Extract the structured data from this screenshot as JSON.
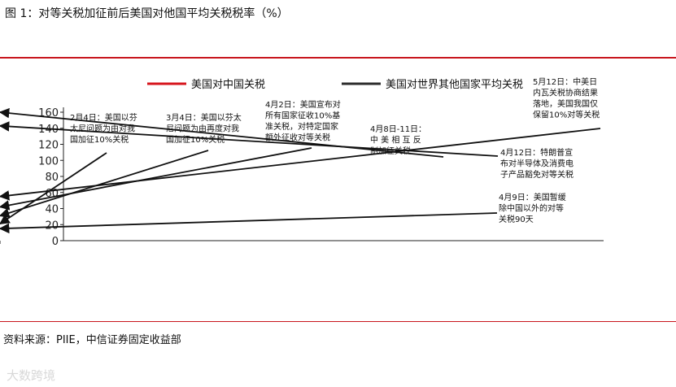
{
  "figure_title": "图 1：对等关税加征前后美国对他国平均关税税率（%）",
  "source": "资料来源：PIIE，中信证券固定收益部",
  "watermark": "大数跨境",
  "colors": {
    "china_series": "#d7151c",
    "world_series": "#2b2b2b",
    "rule": "#c8161d"
  },
  "chart_data": {
    "type": "line",
    "title": "",
    "xlabel": "",
    "ylabel": "",
    "ylim": [
      0,
      160
    ],
    "yticks": [
      0,
      20,
      40,
      60,
      80,
      100,
      120,
      140,
      160
    ],
    "xlim": [
      "2025/1/1",
      "2025/5/15"
    ],
    "xticks": [
      "2025/1/1",
      "2025/1/8",
      "2025/1/15",
      "2025/1/22",
      "2025/1/29",
      "2025/2/5",
      "2025/2/12",
      "2025/2/19",
      "2025/2/26",
      "2025/3/5",
      "2025/3/12",
      "2025/3/19",
      "2025/3/26",
      "2025/4/2",
      "2025/4/9",
      "2025/4/16",
      "2025/4/23",
      "2025/4/30",
      "2025/5/7"
    ],
    "grid": false,
    "legend_position": "top",
    "series": [
      {
        "name": "美国对中国关税",
        "points": [
          [
            "2025/1/1",
            21
          ],
          [
            "2025/2/4",
            21
          ],
          [
            "2025/2/5",
            31
          ],
          [
            "2025/3/3",
            31
          ],
          [
            "2025/3/4",
            41
          ],
          [
            "2025/3/10",
            41
          ],
          [
            "2025/3/11",
            42
          ],
          [
            "2025/4/2",
            42
          ],
          [
            "2025/4/3",
            76
          ],
          [
            "2025/4/8",
            76
          ],
          [
            "2025/4/9",
            166
          ],
          [
            "2025/4/10",
            166
          ],
          [
            "2025/4/11",
            143
          ],
          [
            "2025/5/13",
            143
          ],
          [
            "2025/5/14",
            51
          ]
        ]
      },
      {
        "name": "美国对世界其他国家平均关税",
        "points": [
          [
            "2025/1/1",
            3
          ],
          [
            "2025/3/11",
            3
          ],
          [
            "2025/3/12",
            4
          ],
          [
            "2025/4/4",
            4
          ],
          [
            "2025/4/5",
            24
          ],
          [
            "2025/4/8",
            24
          ],
          [
            "2025/4/10",
            14
          ],
          [
            "2025/5/14",
            14
          ]
        ]
      }
    ],
    "annotations": [
      {
        "lines": [
          "2月4日：美国以芬",
          "太尼问题为由对我",
          "国加征10%关税"
        ],
        "target": [
          "2025/2/4",
          21
        ]
      },
      {
        "lines": [
          "3月4日：美国以芬太",
          "尼问题为由再度对我",
          "国加征10%关税"
        ],
        "target": [
          "2025/3/4",
          31
        ]
      },
      {
        "lines": [
          "4月2日：美国宣布对",
          "所有国家征收10%基",
          "准关税，对特定国家",
          "额外征收对等关税"
        ],
        "target": [
          "2025/4/2",
          42
        ]
      },
      {
        "lines": [
          "4月8日-11日：",
          "中 美 相 互 反",
          "制加征关税"
        ],
        "target": [
          "2025/4/9",
          160
        ]
      },
      {
        "lines": [
          "4月12日：特朗普宣",
          "布对半导体及消费电",
          "子产品豁免对等关税"
        ],
        "target": [
          "2025/4/11",
          143
        ]
      },
      {
        "lines": [
          "4月9日：美国暂缓",
          "除中国以外的对等",
          "关税90天"
        ],
        "target": [
          "2025/4/10",
          15
        ]
      },
      {
        "lines": [
          "5月12日：中美日",
          "内瓦关税协商结果",
          "落地，美国我国仅",
          "保留10%对等关税"
        ],
        "target": [
          "2025/5/14",
          55
        ]
      }
    ]
  }
}
